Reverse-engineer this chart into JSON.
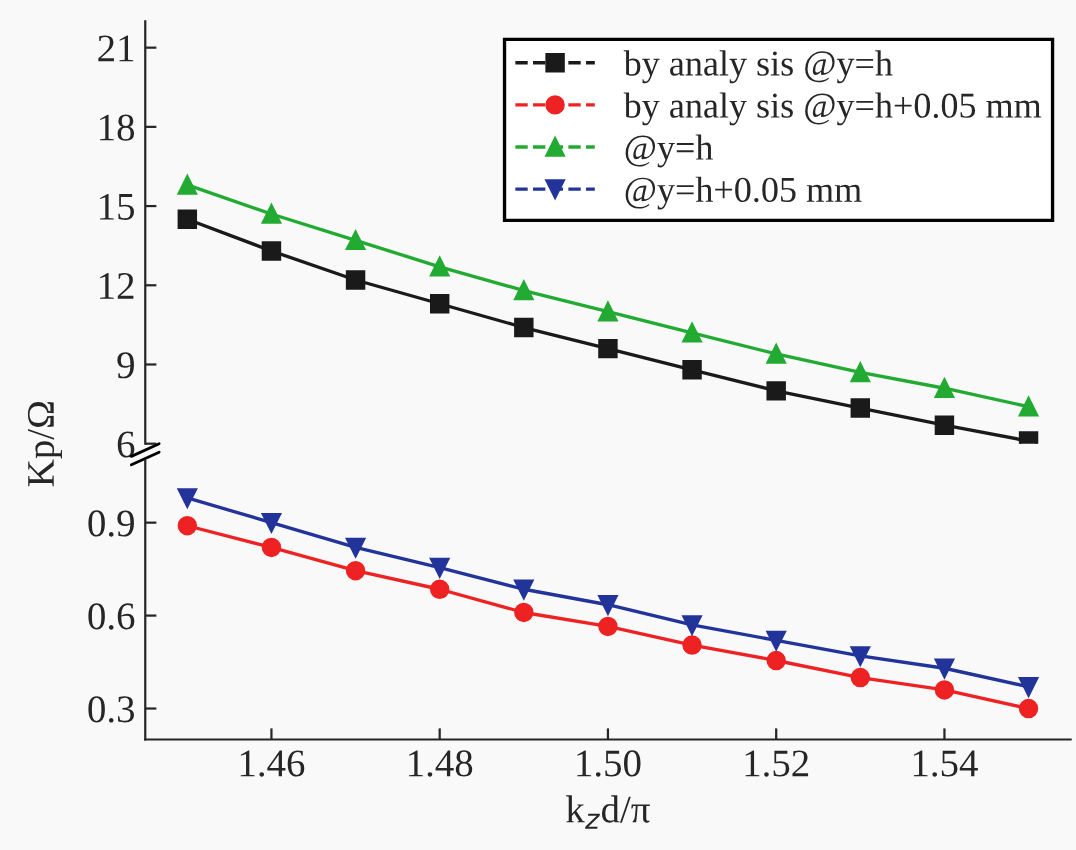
{
  "chart_data": [
    {
      "type": "line",
      "ylabel": "Kp/Ω",
      "x": [
        1.45,
        1.46,
        1.47,
        1.48,
        1.49,
        1.5,
        1.51,
        1.52,
        1.53,
        1.54,
        1.55
      ],
      "xlim": [
        1.445,
        1.555
      ],
      "ylim": [
        6,
        22
      ],
      "yticks": [
        6,
        9,
        12,
        15,
        18,
        21
      ],
      "tick_labels": "y",
      "grid": false,
      "legend": "top right",
      "line_style": "solid",
      "series": [
        {
          "name": "by analy sis @y=h",
          "color": "#1a1a1a",
          "marker": "square",
          "values": [
            14.5,
            13.3,
            12.2,
            11.3,
            10.4,
            9.6,
            8.8,
            8.0,
            7.35,
            6.7,
            6.1
          ]
        },
        {
          "name": "@y=h",
          "color": "#22aa33",
          "marker": "triangle",
          "values": [
            15.8,
            14.7,
            13.7,
            12.7,
            11.8,
            11.0,
            10.2,
            9.4,
            8.7,
            8.1,
            7.4
          ]
        }
      ]
    },
    {
      "type": "line",
      "xlabel": "k$_{z}$d/π",
      "x": [
        1.45,
        1.46,
        1.47,
        1.48,
        1.49,
        1.5,
        1.51,
        1.52,
        1.53,
        1.54,
        1.55
      ],
      "xlim": [
        1.445,
        1.555
      ],
      "xticks": [
        {
          "value": 1.46,
          "label": "1.46"
        },
        {
          "value": 1.48,
          "label": "1.48"
        },
        {
          "value": 1.5,
          "label": "1.50"
        },
        {
          "value": 1.52,
          "label": "1.52"
        },
        {
          "value": 1.54,
          "label": "1.54"
        }
      ],
      "ylim": [
        0.2,
        1.1
      ],
      "yticks": [
        0.3,
        0.6,
        0.9
      ],
      "grid": false,
      "legend": "top right",
      "line_style": "solid",
      "series": [
        {
          "name": "by analy sis @y=h+0.05 mm",
          "color": "#ee2222",
          "marker": "circle",
          "values": [
            0.89,
            0.82,
            0.745,
            0.685,
            0.61,
            0.565,
            0.505,
            0.455,
            0.4,
            0.36,
            0.3
          ]
        },
        {
          "name": "@y=h+0.05 mm",
          "color": "#22339a",
          "marker": "triangle-down",
          "values": [
            0.98,
            0.9,
            0.82,
            0.755,
            0.685,
            0.635,
            0.57,
            0.52,
            0.47,
            0.43,
            0.37
          ]
        }
      ]
    }
  ]
}
